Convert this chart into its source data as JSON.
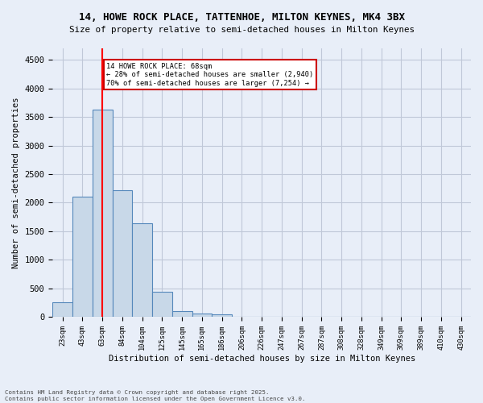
{
  "title_line1": "14, HOWE ROCK PLACE, TATTENHOE, MILTON KEYNES, MK4 3BX",
  "title_line2": "Size of property relative to semi-detached houses in Milton Keynes",
  "xlabel": "Distribution of semi-detached houses by size in Milton Keynes",
  "ylabel": "Number of semi-detached properties",
  "bin_labels": [
    "23sqm",
    "43sqm",
    "63sqm",
    "84sqm",
    "104sqm",
    "125sqm",
    "145sqm",
    "165sqm",
    "186sqm",
    "206sqm",
    "226sqm",
    "247sqm",
    "267sqm",
    "287sqm",
    "308sqm",
    "328sqm",
    "349sqm",
    "369sqm",
    "389sqm",
    "410sqm",
    "430sqm"
  ],
  "bar_values": [
    250,
    2100,
    3630,
    2220,
    1640,
    440,
    100,
    60,
    40,
    0,
    0,
    0,
    0,
    0,
    0,
    0,
    0,
    0,
    0,
    0,
    0
  ],
  "bar_color": "#c8d8e8",
  "bar_edge_color": "#5588bb",
  "red_line_x": 2,
  "annotation_title": "14 HOWE ROCK PLACE: 68sqm",
  "annotation_line1": "← 28% of semi-detached houses are smaller (2,940)",
  "annotation_line2": "70% of semi-detached houses are larger (7,254) →",
  "annotation_box_color": "#ffffff",
  "annotation_box_edge": "#cc0000",
  "ylim": [
    0,
    4700
  ],
  "yticks": [
    0,
    500,
    1000,
    1500,
    2000,
    2500,
    3000,
    3500,
    4000,
    4500
  ],
  "background_color": "#e8eef8",
  "plot_bg_color": "#e8eef8",
  "grid_color": "#c0c8d8",
  "footer_line1": "Contains HM Land Registry data © Crown copyright and database right 2025.",
  "footer_line2": "Contains public sector information licensed under the Open Government Licence v3.0."
}
